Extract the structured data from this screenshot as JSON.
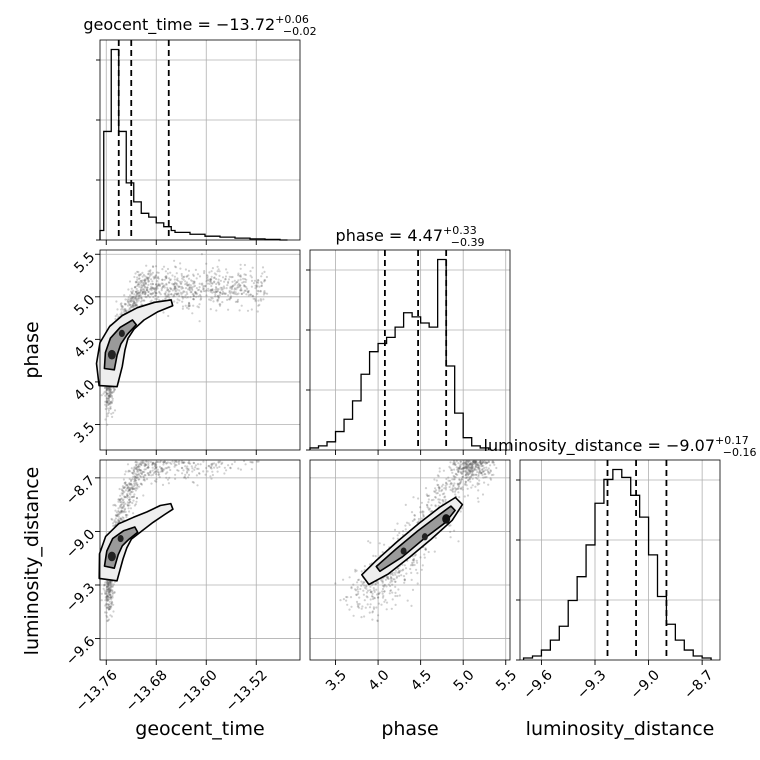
{
  "chart_data": {
    "type": "corner",
    "parameters": [
      {
        "name": "geocent_time",
        "title_main": "geocent_time = −13.72",
        "title_plus": "+0.06",
        "title_minus": "−0.02",
        "median": -13.72,
        "quantiles": [
          -13.74,
          -13.72,
          -13.66
        ],
        "range": [
          -13.77,
          -13.45
        ],
        "ticks": [
          -13.76,
          -13.68,
          -13.6,
          -13.52
        ],
        "tick_labels": [
          "−13.76",
          "−13.68",
          "−13.60",
          "−13.52"
        ],
        "histogram": {
          "edges": [
            -13.77,
            -13.764,
            -13.758,
            -13.752,
            -13.746,
            -13.74,
            -13.734,
            -13.728,
            -13.722,
            -13.716,
            -13.71,
            -13.704,
            -13.698,
            -13.692,
            -13.686,
            -13.68,
            -13.674,
            -13.668,
            -13.662,
            -13.656,
            -13.65,
            -13.638,
            -13.626,
            -13.614,
            -13.602,
            -13.59,
            -13.578,
            -13.566,
            -13.554,
            -13.542,
            -13.53,
            -13.518,
            -13.506,
            -13.494,
            -13.482,
            -13.47
          ],
          "counts": [
            0.05,
            0.57,
            0.57,
            1.0,
            1.0,
            0.57,
            0.57,
            0.3,
            0.3,
            0.2,
            0.2,
            0.14,
            0.14,
            0.12,
            0.12,
            0.09,
            0.09,
            0.07,
            0.07,
            0.05,
            0.04,
            0.04,
            0.03,
            0.03,
            0.02,
            0.02,
            0.015,
            0.015,
            0.01,
            0.01,
            0.006,
            0.006,
            0.003,
            0.003,
            0.0
          ]
        }
      },
      {
        "name": "phase",
        "title_main": "phase = 4.47",
        "title_plus": "+0.33",
        "title_minus": "−0.39",
        "median": 4.47,
        "quantiles": [
          4.08,
          4.47,
          4.8
        ],
        "range": [
          3.2,
          5.55
        ],
        "ticks": [
          3.5,
          4.0,
          4.5,
          5.0,
          5.5
        ],
        "tick_labels": [
          "3.5",
          "4.0",
          "4.5",
          "5.0",
          "5.5"
        ],
        "histogram": {
          "edges": [
            3.2,
            3.3,
            3.4,
            3.5,
            3.6,
            3.7,
            3.8,
            3.9,
            4.0,
            4.1,
            4.2,
            4.3,
            4.4,
            4.5,
            4.6,
            4.7,
            4.8,
            4.9,
            5.0,
            5.1,
            5.2,
            5.3
          ],
          "counts": [
            0.01,
            0.02,
            0.04,
            0.09,
            0.15,
            0.24,
            0.37,
            0.48,
            0.52,
            0.55,
            0.6,
            0.67,
            0.65,
            0.62,
            0.6,
            0.93,
            0.41,
            0.18,
            0.06,
            0.02,
            0.01
          ]
        }
      },
      {
        "name": "luminosity_distance",
        "title_main": "luminosity_distance = −9.07",
        "title_plus": "+0.17",
        "title_minus": "−0.16",
        "median": -9.07,
        "quantiles": [
          -9.23,
          -9.07,
          -8.9
        ],
        "range": [
          -9.72,
          -8.6
        ],
        "ticks": [
          -9.6,
          -9.3,
          -9.0,
          -8.7
        ],
        "tick_labels": [
          "−9.6",
          "−9.3",
          "−9.0",
          "−8.7"
        ],
        "histogram": {
          "edges": [
            -9.7,
            -9.65,
            -9.6,
            -9.55,
            -9.5,
            -9.45,
            -9.4,
            -9.35,
            -9.3,
            -9.25,
            -9.2,
            -9.15,
            -9.1,
            -9.05,
            -9.0,
            -8.95,
            -8.9,
            -8.85,
            -8.8,
            -8.75,
            -8.7,
            -8.65
          ],
          "counts": [
            0.01,
            0.02,
            0.05,
            0.1,
            0.17,
            0.3,
            0.42,
            0.58,
            0.79,
            0.91,
            0.96,
            0.92,
            0.83,
            0.72,
            0.53,
            0.32,
            0.18,
            0.1,
            0.05,
            0.02,
            0.01
          ]
        }
      }
    ],
    "pairs": [
      {
        "x": "geocent_time",
        "y": "phase",
        "correlation": "curved"
      },
      {
        "x": "geocent_time",
        "y": "luminosity_distance",
        "correlation": "curved"
      },
      {
        "x": "phase",
        "y": "luminosity_distance",
        "correlation": "linear"
      }
    ],
    "grid": true,
    "colors": {
      "line": "#000000",
      "points": "#555555",
      "grid": "#b0b0b0"
    }
  }
}
